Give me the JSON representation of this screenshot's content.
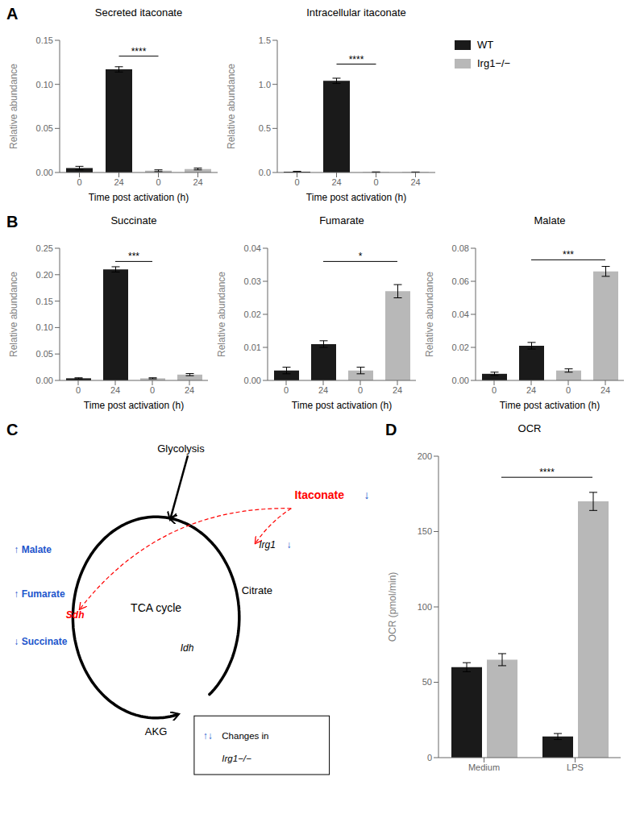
{
  "chart_data": [
    {
      "type": "bar",
      "title": "Secreted itaconate",
      "xlabel": "Time post activation (h)",
      "ylabel": "Relative abundance",
      "categories": [
        "0",
        "24",
        "0",
        "24"
      ],
      "series": [
        {
          "name": "WT",
          "color": "#1a1a1a",
          "values": [
            0.005,
            0.117,
            null,
            null
          ],
          "errors": [
            0.002,
            0.003,
            null,
            null
          ]
        },
        {
          "name": "Irg1−/−",
          "color": "#b8b8b8",
          "values": [
            null,
            null,
            0.002,
            0.004
          ],
          "errors": [
            null,
            null,
            0.001,
            0.001
          ]
        }
      ],
      "ylim": [
        0,
        0.15
      ],
      "yticks": [
        {
          "value": 0,
          "label": "0.00"
        },
        0.05,
        {
          "value": 0.1,
          "label": "0.10"
        },
        0.15
      ],
      "annotations": [
        {
          "text": "A"
        },
        {
          "text": "****",
          "x1": 1,
          "x2": 2,
          "y": 0.132
        }
      ]
    },
    {
      "type": "bar",
      "title": "Intracellular itaconate",
      "xlabel": "Time post activation (h)",
      "ylabel": "Relative abundance",
      "categories": [
        "0",
        "24",
        "0",
        "24"
      ],
      "series": [
        {
          "name": "WT",
          "color": "#1a1a1a",
          "values": [
            0.01,
            1.04,
            null,
            null
          ],
          "errors": [
            0.003,
            0.03,
            null,
            null
          ]
        },
        {
          "name": "Irg1−/−",
          "color": "#b8b8b8",
          "values": [
            null,
            null,
            0.005,
            0.005
          ],
          "errors": [
            null,
            null,
            0.002,
            0.001
          ]
        }
      ],
      "ylim": [
        0,
        1.5
      ],
      "yticks": [
        {
          "value": 0,
          "label": "0.0"
        },
        0.5,
        {
          "value": 1,
          "label": "1.0"
        },
        1.5
      ],
      "legend": "right",
      "annotations": [
        {
          "text": "****",
          "x1": 1,
          "x2": 2,
          "y": 1.23
        }
      ]
    },
    {
      "type": "bar",
      "title": "Succinate",
      "xlabel": "Time post activation (h)",
      "ylabel": "Relative abundance",
      "categories": [
        "0",
        "24",
        "0",
        "24"
      ],
      "series": [
        {
          "name": "WT",
          "color": "#1a1a1a",
          "values": [
            0.004,
            0.21,
            null,
            null
          ],
          "errors": [
            0.001,
            0.005,
            null,
            null
          ]
        },
        {
          "name": "Irg1−/−",
          "color": "#b8b8b8",
          "values": [
            null,
            null,
            0.004,
            0.011
          ],
          "errors": [
            null,
            null,
            0.001,
            0.002
          ]
        }
      ],
      "ylim": [
        0,
        0.25
      ],
      "yticks": [
        {
          "value": 0,
          "label": "0.00"
        },
        0.05,
        {
          "value": 0.1,
          "label": "0.10"
        },
        0.15,
        {
          "value": 0.2,
          "label": "0.20"
        },
        0.25
      ],
      "annotations": [
        {
          "text": "B"
        },
        {
          "text": "***",
          "x1": 1,
          "x2": 2,
          "y": 0.225
        }
      ]
    },
    {
      "type": "bar",
      "title": "Fumarate",
      "xlabel": "Time post activation (h)",
      "ylabel": "Relative abundance",
      "categories": [
        "0",
        "24",
        "0",
        "24"
      ],
      "series": [
        {
          "name": "WT",
          "color": "#1a1a1a",
          "values": [
            0.003,
            0.011,
            null,
            null
          ],
          "errors": [
            0.001,
            0.001,
            null,
            null
          ]
        },
        {
          "name": "Irg1−/−",
          "color": "#b8b8b8",
          "values": [
            null,
            null,
            0.003,
            0.027
          ],
          "errors": [
            null,
            null,
            0.001,
            0.002
          ]
        }
      ],
      "ylim": [
        0,
        0.04
      ],
      "yticks": [
        {
          "value": 0,
          "label": "0.00"
        },
        0.01,
        0.02,
        0.03,
        0.04
      ],
      "annotations": [
        {
          "text": "*",
          "x1": 1,
          "x2": 3,
          "y": 0.036
        }
      ]
    },
    {
      "type": "bar",
      "title": "Malate",
      "xlabel": "Time post activation (h)",
      "ylabel": "Relative abundance",
      "categories": [
        "0",
        "24",
        "0",
        "24"
      ],
      "series": [
        {
          "name": "WT",
          "color": "#1a1a1a",
          "values": [
            0.004,
            0.021,
            null,
            null
          ],
          "errors": [
            0.001,
            0.002,
            null,
            null
          ]
        },
        {
          "name": "Irg1−/−",
          "color": "#b8b8b8",
          "values": [
            null,
            null,
            0.006,
            0.066
          ],
          "errors": [
            null,
            null,
            0.001,
            0.003
          ]
        }
      ],
      "ylim": [
        0,
        0.08
      ],
      "yticks": [
        {
          "value": 0,
          "label": "0.00"
        },
        0.02,
        0.04,
        0.06,
        0.08
      ],
      "annotations": [
        {
          "text": "***",
          "x1": 1,
          "x2": 3,
          "y": 0.073
        }
      ]
    },
    {
      "type": "diagram",
      "annotations": [
        {
          "text": "C"
        },
        {
          "text": "Glycolysis"
        },
        {
          "text": "Citrate"
        },
        {
          "text": "AKG"
        },
        {
          "text": "TCA cycle"
        },
        {
          "text": "↑ Malate",
          "color": "#2255cc"
        },
        {
          "text": "↑ Fumarate",
          "color": "#2255cc"
        },
        {
          "text": "↓ Succinate",
          "color": "#2255cc"
        },
        {
          "text": "Sdh",
          "color": "red"
        },
        {
          "text": "Itaconate",
          "color": "red"
        },
        {
          "text": "↓",
          "color": "#2255cc"
        },
        {
          "text": "Irg1"
        },
        {
          "text": "↓",
          "color": "#2255cc"
        },
        {
          "text": "Idh"
        },
        {
          "text": "↑↓",
          "color": "#2255cc"
        },
        {
          "text": "Changes in"
        },
        {
          "text": "Irg1−/−"
        }
      ]
    },
    {
      "type": "bar",
      "title": "OCR",
      "ylabel": "OCR (pmol/min)",
      "categories": [
        "Medium",
        "LPS"
      ],
      "series": [
        {
          "name": "WT",
          "color": "#1a1a1a",
          "values": [
            60,
            14
          ],
          "errors": [
            3,
            2
          ]
        },
        {
          "name": "Irg1−/−",
          "color": "#b8b8b8",
          "values": [
            65,
            170
          ],
          "errors": [
            4,
            6
          ]
        }
      ],
      "ylim": [
        0,
        200
      ],
      "yticks": [
        0,
        50,
        100,
        150,
        200
      ],
      "annotations": [
        {
          "text": "D"
        },
        {
          "text": "****",
          "series": "Irg1−/−",
          "x1": 0,
          "x2": 1,
          "y": 186
        }
      ]
    }
  ]
}
